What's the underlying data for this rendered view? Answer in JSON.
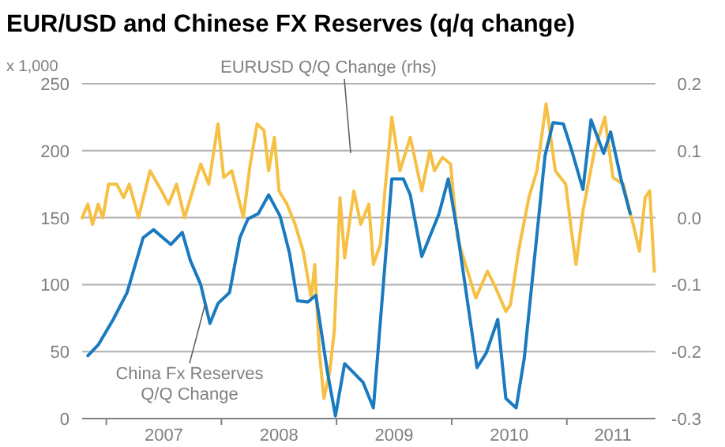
{
  "chart_data": {
    "type": "line",
    "title": "EUR/USD and Chinese FX Reserves (q/q change)",
    "ylabel": "x 1,000",
    "xlim": [
      2006.79,
      2011.77
    ],
    "xticks": [
      {
        "value": 2007,
        "label": null
      },
      {
        "value": 2007.5,
        "label": "2007"
      },
      {
        "value": 2008,
        "label": null
      },
      {
        "value": 2008.5,
        "label": "2008"
      },
      {
        "value": 2009,
        "label": null
      },
      {
        "value": 2009.5,
        "label": "2009"
      },
      {
        "value": 2010,
        "label": null
      },
      {
        "value": 2010.5,
        "label": "2010"
      },
      {
        "value": 2011,
        "label": null
      },
      {
        "value": 2011.4,
        "label": "2011"
      }
    ],
    "ylim": [
      0,
      250
    ],
    "yticks": [
      0,
      50,
      100,
      150,
      200,
      250
    ],
    "y2lim": [
      -0.3,
      0.2
    ],
    "y2ticks": [
      {
        "value": -0.3,
        "label": "-0.3"
      },
      {
        "value": -0.2,
        "label": "-0.2"
      },
      {
        "value": -0.1,
        "label": "-0.1"
      },
      {
        "value": 0,
        "label": "0.0"
      },
      {
        "value": 0.1,
        "label": "0.1"
      },
      {
        "value": 0.2,
        "label": "0.2"
      }
    ],
    "grid": "y",
    "marker": "none",
    "line_style": "solid",
    "series": [
      {
        "color": "#f5c044",
        "axis": "y2",
        "x": [
          2006.79,
          2006.84,
          2006.88,
          2006.93,
          2006.97,
          2007.02,
          2007.09,
          2007.15,
          2007.2,
          2007.28,
          2007.38,
          2007.48,
          2007.54,
          2007.61,
          2007.68,
          2007.82,
          2007.89,
          2007.97,
          2008.02,
          2008.09,
          2008.19,
          2008.25,
          2008.31,
          2008.37,
          2008.41,
          2008.46,
          2008.5,
          2008.57,
          2008.64,
          2008.71,
          2008.78,
          2008.81,
          2008.85,
          2008.89,
          2008.94,
          2008.98,
          2009.03,
          2009.07,
          2009.15,
          2009.21,
          2009.28,
          2009.32,
          2009.38,
          2009.42,
          2009.48,
          2009.55,
          2009.64,
          2009.74,
          2009.81,
          2009.85,
          2009.92,
          2009.99,
          2010.05,
          2010.12,
          2010.21,
          2010.31,
          2010.37,
          2010.47,
          2010.51,
          2010.58,
          2010.67,
          2010.74,
          2010.82,
          2010.9,
          2010.99,
          2011.04,
          2011.08,
          2011.14,
          2011.24,
          2011.33,
          2011.4,
          2011.49,
          2011.59,
          2011.63,
          2011.68,
          2011.72,
          2011.76
        ],
        "values": [
          0.0,
          0.02,
          -0.01,
          0.02,
          0.0,
          0.05,
          0.05,
          0.03,
          0.05,
          0.0,
          0.07,
          0.04,
          0.02,
          0.05,
          0.0,
          0.08,
          0.05,
          0.14,
          0.06,
          0.07,
          0.0,
          0.08,
          0.14,
          0.13,
          0.07,
          0.12,
          0.04,
          0.02,
          -0.01,
          -0.05,
          -0.12,
          -0.07,
          -0.2,
          -0.27,
          -0.23,
          -0.17,
          0.03,
          -0.06,
          0.04,
          -0.01,
          0.02,
          -0.07,
          -0.04,
          0.04,
          0.15,
          0.07,
          0.12,
          0.04,
          0.1,
          0.07,
          0.09,
          0.08,
          -0.03,
          -0.07,
          -0.12,
          -0.08,
          -0.1,
          -0.14,
          -0.13,
          -0.05,
          0.03,
          0.07,
          0.17,
          0.07,
          0.05,
          -0.02,
          -0.07,
          0.01,
          0.1,
          0.15,
          0.06,
          0.05,
          -0.02,
          -0.05,
          0.03,
          0.04,
          -0.08
        ]
      },
      {
        "color": "#1a7abf",
        "x": [
          2006.84,
          2006.93,
          2007.06,
          2007.18,
          2007.32,
          2007.41,
          2007.56,
          2007.66,
          2007.73,
          2007.82,
          2007.9,
          2007.97,
          2008.07,
          2008.16,
          2008.23,
          2008.32,
          2008.41,
          2008.51,
          2008.59,
          2008.66,
          2008.75,
          2008.82,
          2008.92,
          2008.99,
          2009.07,
          2009.23,
          2009.32,
          2009.48,
          2009.58,
          2009.64,
          2009.74,
          2009.89,
          2009.97,
          2010.05,
          2010.22,
          2010.3,
          2010.4,
          2010.47,
          2010.56,
          2010.63,
          2010.81,
          2010.88,
          2010.97,
          2011.05,
          2011.14,
          2011.21,
          2011.32,
          2011.38,
          2011.47,
          2011.55
        ],
        "values": [
          47,
          55,
          74,
          94,
          135,
          141,
          130,
          139,
          118,
          100,
          71,
          86,
          94,
          135,
          149,
          153,
          167,
          151,
          124,
          88,
          87,
          92,
          35,
          2,
          41,
          27,
          8,
          179,
          179,
          167,
          121,
          153,
          179,
          139,
          38,
          49,
          74,
          15,
          8,
          45,
          196,
          221,
          220,
          198,
          171,
          223,
          198,
          214,
          179,
          153
        ]
      }
    ],
    "annotations": [
      "EURUSD Q/Q Change (rhs)",
      {
        "text": "China Fx Reserves\nQ/Q Change",
        "x": 2007.86,
        "y": 86
      }
    ]
  }
}
